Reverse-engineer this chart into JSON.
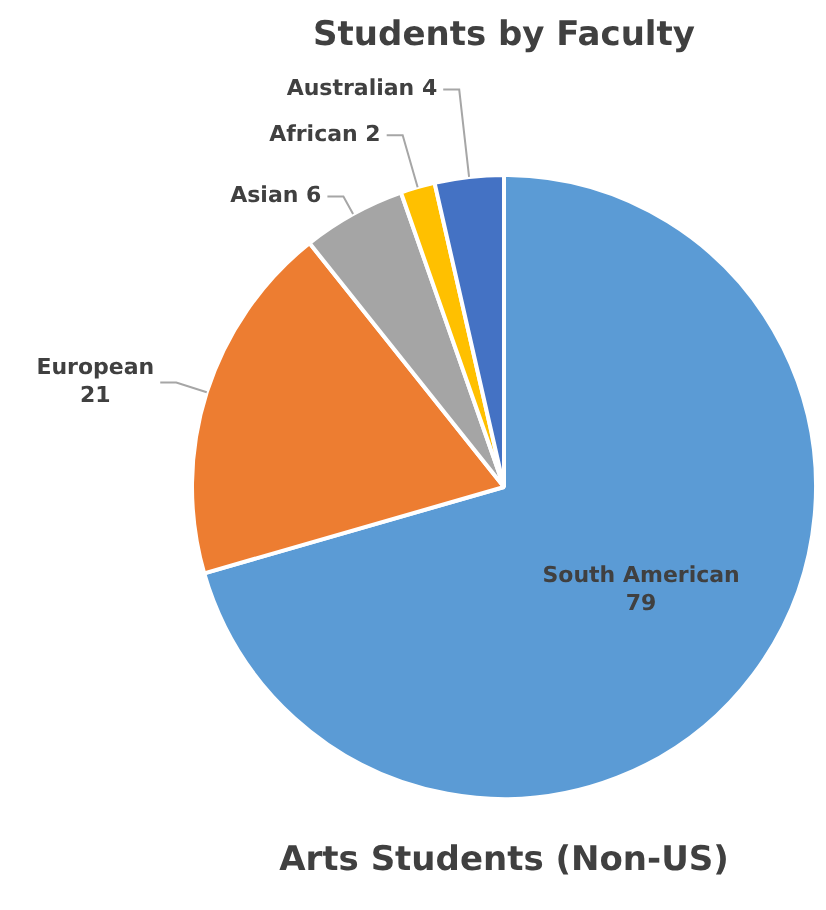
{
  "chart_data": {
    "type": "pie",
    "title": "Students by Faculty",
    "subtitle": "Arts Students (Non-US)",
    "categories": [
      "South American",
      "European",
      "Asian",
      "African",
      "Australian"
    ],
    "values": [
      79,
      21,
      6,
      2,
      4
    ],
    "colors": [
      "#5b9bd5",
      "#ed7d31",
      "#a5a5a5",
      "#ffc000",
      "#4472c4"
    ],
    "data_labels": true,
    "legend": false
  }
}
